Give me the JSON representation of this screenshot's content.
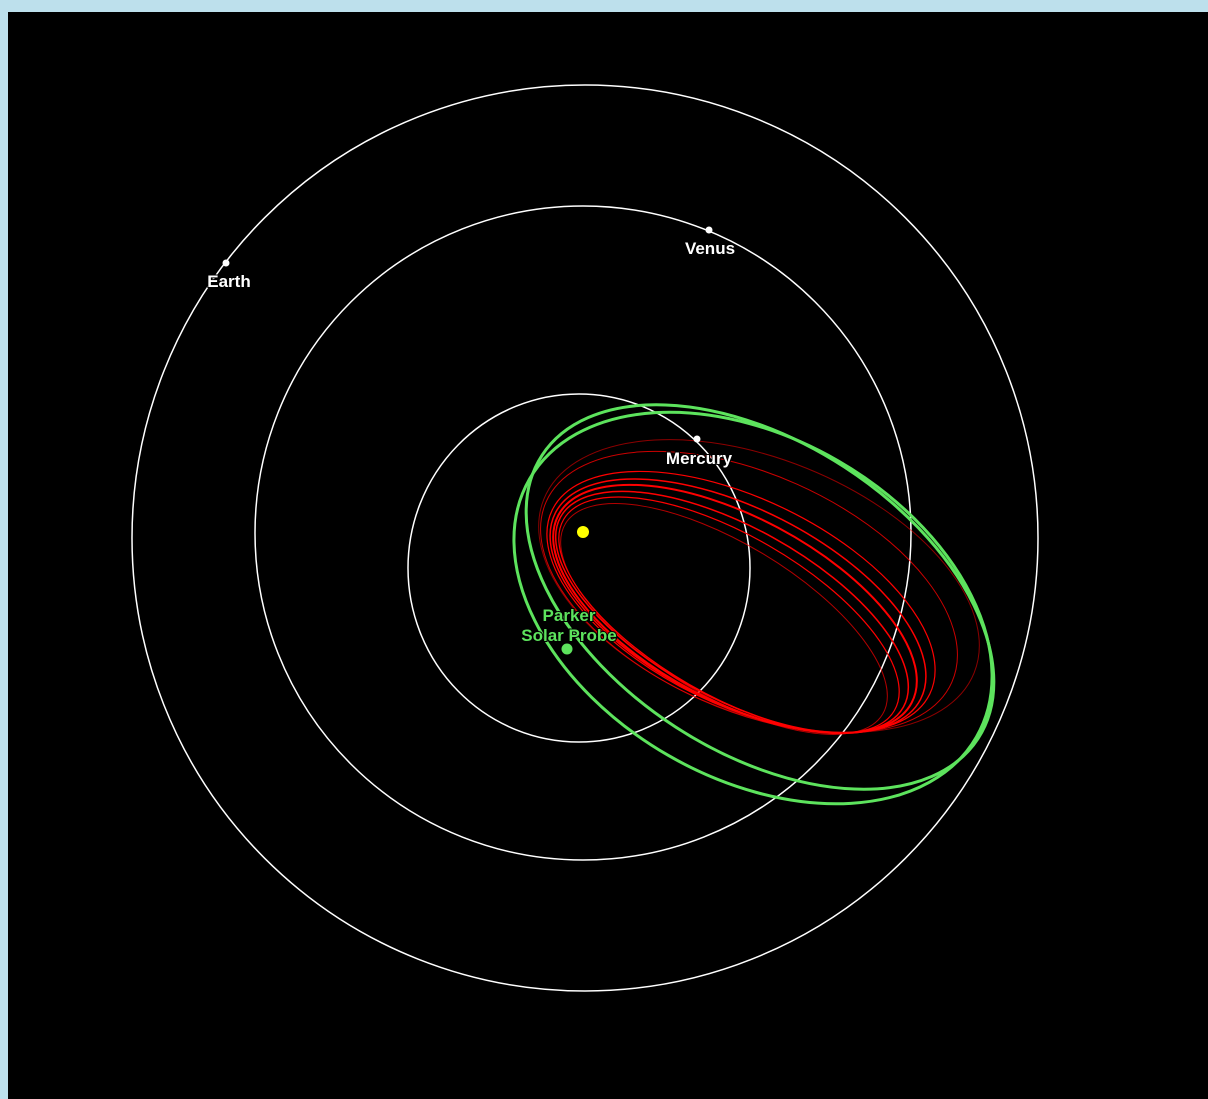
{
  "colors": {
    "background_outer": "#bde0ec",
    "canvas": "#000000",
    "planet_orbit": "#ffffff",
    "planet_marker": "#ffffff",
    "planet_label": "#ffffff",
    "sun": "#ffff00",
    "probe_orbit": "#5de35d",
    "probe_marker": "#5de35d",
    "probe_label": "#5de35d",
    "past_orbits": "#ff0000"
  },
  "sun": {
    "name": "Sun",
    "icon": "sun-icon"
  },
  "planets": [
    {
      "name": "Mercury",
      "label": "Mercury",
      "icon": "planet-dot-icon"
    },
    {
      "name": "Venus",
      "label": "Venus",
      "icon": "planet-dot-icon"
    },
    {
      "name": "Earth",
      "label": "Earth",
      "icon": "planet-dot-icon"
    }
  ],
  "probe": {
    "label_line1": "Parker",
    "label_line2": "Solar Probe",
    "icon": "spacecraft-dot-icon"
  }
}
